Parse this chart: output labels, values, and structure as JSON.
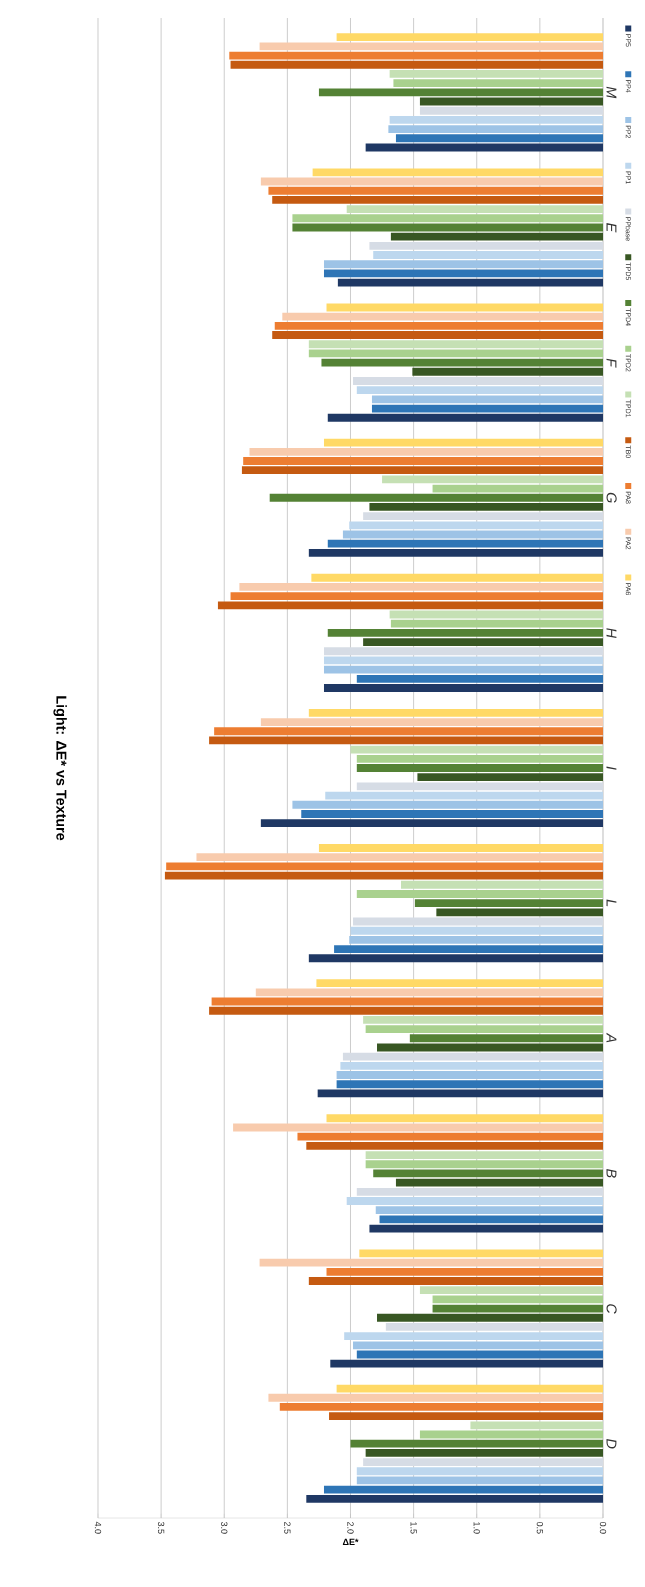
{
  "chart_data": {
    "type": "bar",
    "orientation": "horizontal",
    "title": "Light: ΔE* vs Texture",
    "xlabel": "ΔE*",
    "categories": [
      "M",
      "E",
      "F",
      "G",
      "H",
      "I",
      "L",
      "A",
      "B",
      "C",
      "D"
    ],
    "xlim": [
      4.0,
      0.0
    ],
    "xticks": [
      {
        "value": 4.0,
        "label": "4.0"
      },
      {
        "value": 3.5,
        "label": "3.5"
      },
      {
        "value": 3.0,
        "label": "3.0"
      },
      {
        "value": 2.5,
        "label": "2.5"
      },
      {
        "value": 2.0,
        "label": "2.0"
      },
      {
        "value": 1.5,
        "label": "1.5"
      },
      {
        "value": 1.0,
        "label": "1.0"
      },
      {
        "value": 0.5,
        "label": "0.5"
      },
      {
        "value": 0.0,
        "label": "0.0"
      }
    ],
    "grid": "x",
    "legend": "right",
    "series": [
      {
        "name": "PP5",
        "color": "#1f3864",
        "values": [
          1.88,
          2.1,
          2.18,
          2.33,
          2.21,
          2.71,
          2.33,
          2.26,
          1.85,
          2.16,
          2.35
        ]
      },
      {
        "name": "PP4",
        "color": "#2e75b6",
        "values": [
          1.64,
          2.21,
          1.83,
          2.18,
          1.95,
          2.39,
          2.13,
          2.11,
          1.77,
          1.95,
          2.21
        ]
      },
      {
        "name": "PP2",
        "color": "#9dc3e6",
        "values": [
          1.7,
          2.21,
          1.83,
          2.06,
          2.21,
          2.46,
          2.01,
          2.11,
          1.8,
          1.98,
          1.95
        ]
      },
      {
        "name": "PP1",
        "color": "#bdd7ee",
        "values": [
          1.69,
          1.82,
          1.95,
          2.01,
          2.21,
          2.2,
          2.0,
          2.08,
          2.03,
          2.05,
          1.95
        ]
      },
      {
        "name": "PPbase",
        "color": "#d6dce5",
        "values": [
          1.45,
          1.85,
          1.98,
          1.9,
          2.21,
          1.95,
          1.98,
          2.06,
          1.95,
          1.72,
          1.9
        ]
      },
      {
        "name": "TPD5",
        "color": "#385723",
        "values": [
          1.45,
          1.68,
          1.51,
          1.85,
          1.9,
          1.47,
          1.32,
          1.79,
          1.64,
          1.79,
          1.88
        ]
      },
      {
        "name": "TPD4",
        "color": "#548235",
        "values": [
          2.25,
          2.46,
          2.23,
          2.64,
          2.18,
          1.95,
          1.49,
          1.53,
          1.82,
          1.35,
          2.0
        ]
      },
      {
        "name": "TPD2",
        "color": "#a9d18e",
        "values": [
          1.66,
          2.46,
          2.33,
          1.35,
          1.68,
          1.95,
          1.95,
          1.88,
          1.88,
          1.35,
          1.45
        ]
      },
      {
        "name": "TPD1",
        "color": "#c5e0b4",
        "values": [
          1.69,
          2.03,
          2.33,
          1.75,
          1.69,
          2.0,
          1.6,
          1.9,
          1.88,
          1.45,
          1.05
        ]
      },
      {
        "name": "TB0",
        "color": "#c55a11",
        "values": [
          2.95,
          2.62,
          2.62,
          2.86,
          3.05,
          3.12,
          3.47,
          3.12,
          2.35,
          2.33,
          2.17
        ]
      },
      {
        "name": "PA8",
        "color": "#ed7d31",
        "values": [
          2.96,
          2.65,
          2.6,
          2.85,
          2.95,
          3.08,
          3.46,
          3.1,
          2.42,
          2.19,
          2.56
        ]
      },
      {
        "name": "PA2",
        "color": "#f8cbad",
        "values": [
          2.72,
          2.71,
          2.54,
          2.8,
          2.88,
          2.71,
          3.22,
          2.75,
          2.93,
          2.72,
          2.65
        ]
      },
      {
        "name": "PA6",
        "color": "#ffd966",
        "values": [
          2.11,
          2.3,
          2.19,
          2.21,
          2.31,
          2.33,
          2.25,
          2.27,
          2.19,
          1.93,
          2.11
        ]
      }
    ]
  }
}
